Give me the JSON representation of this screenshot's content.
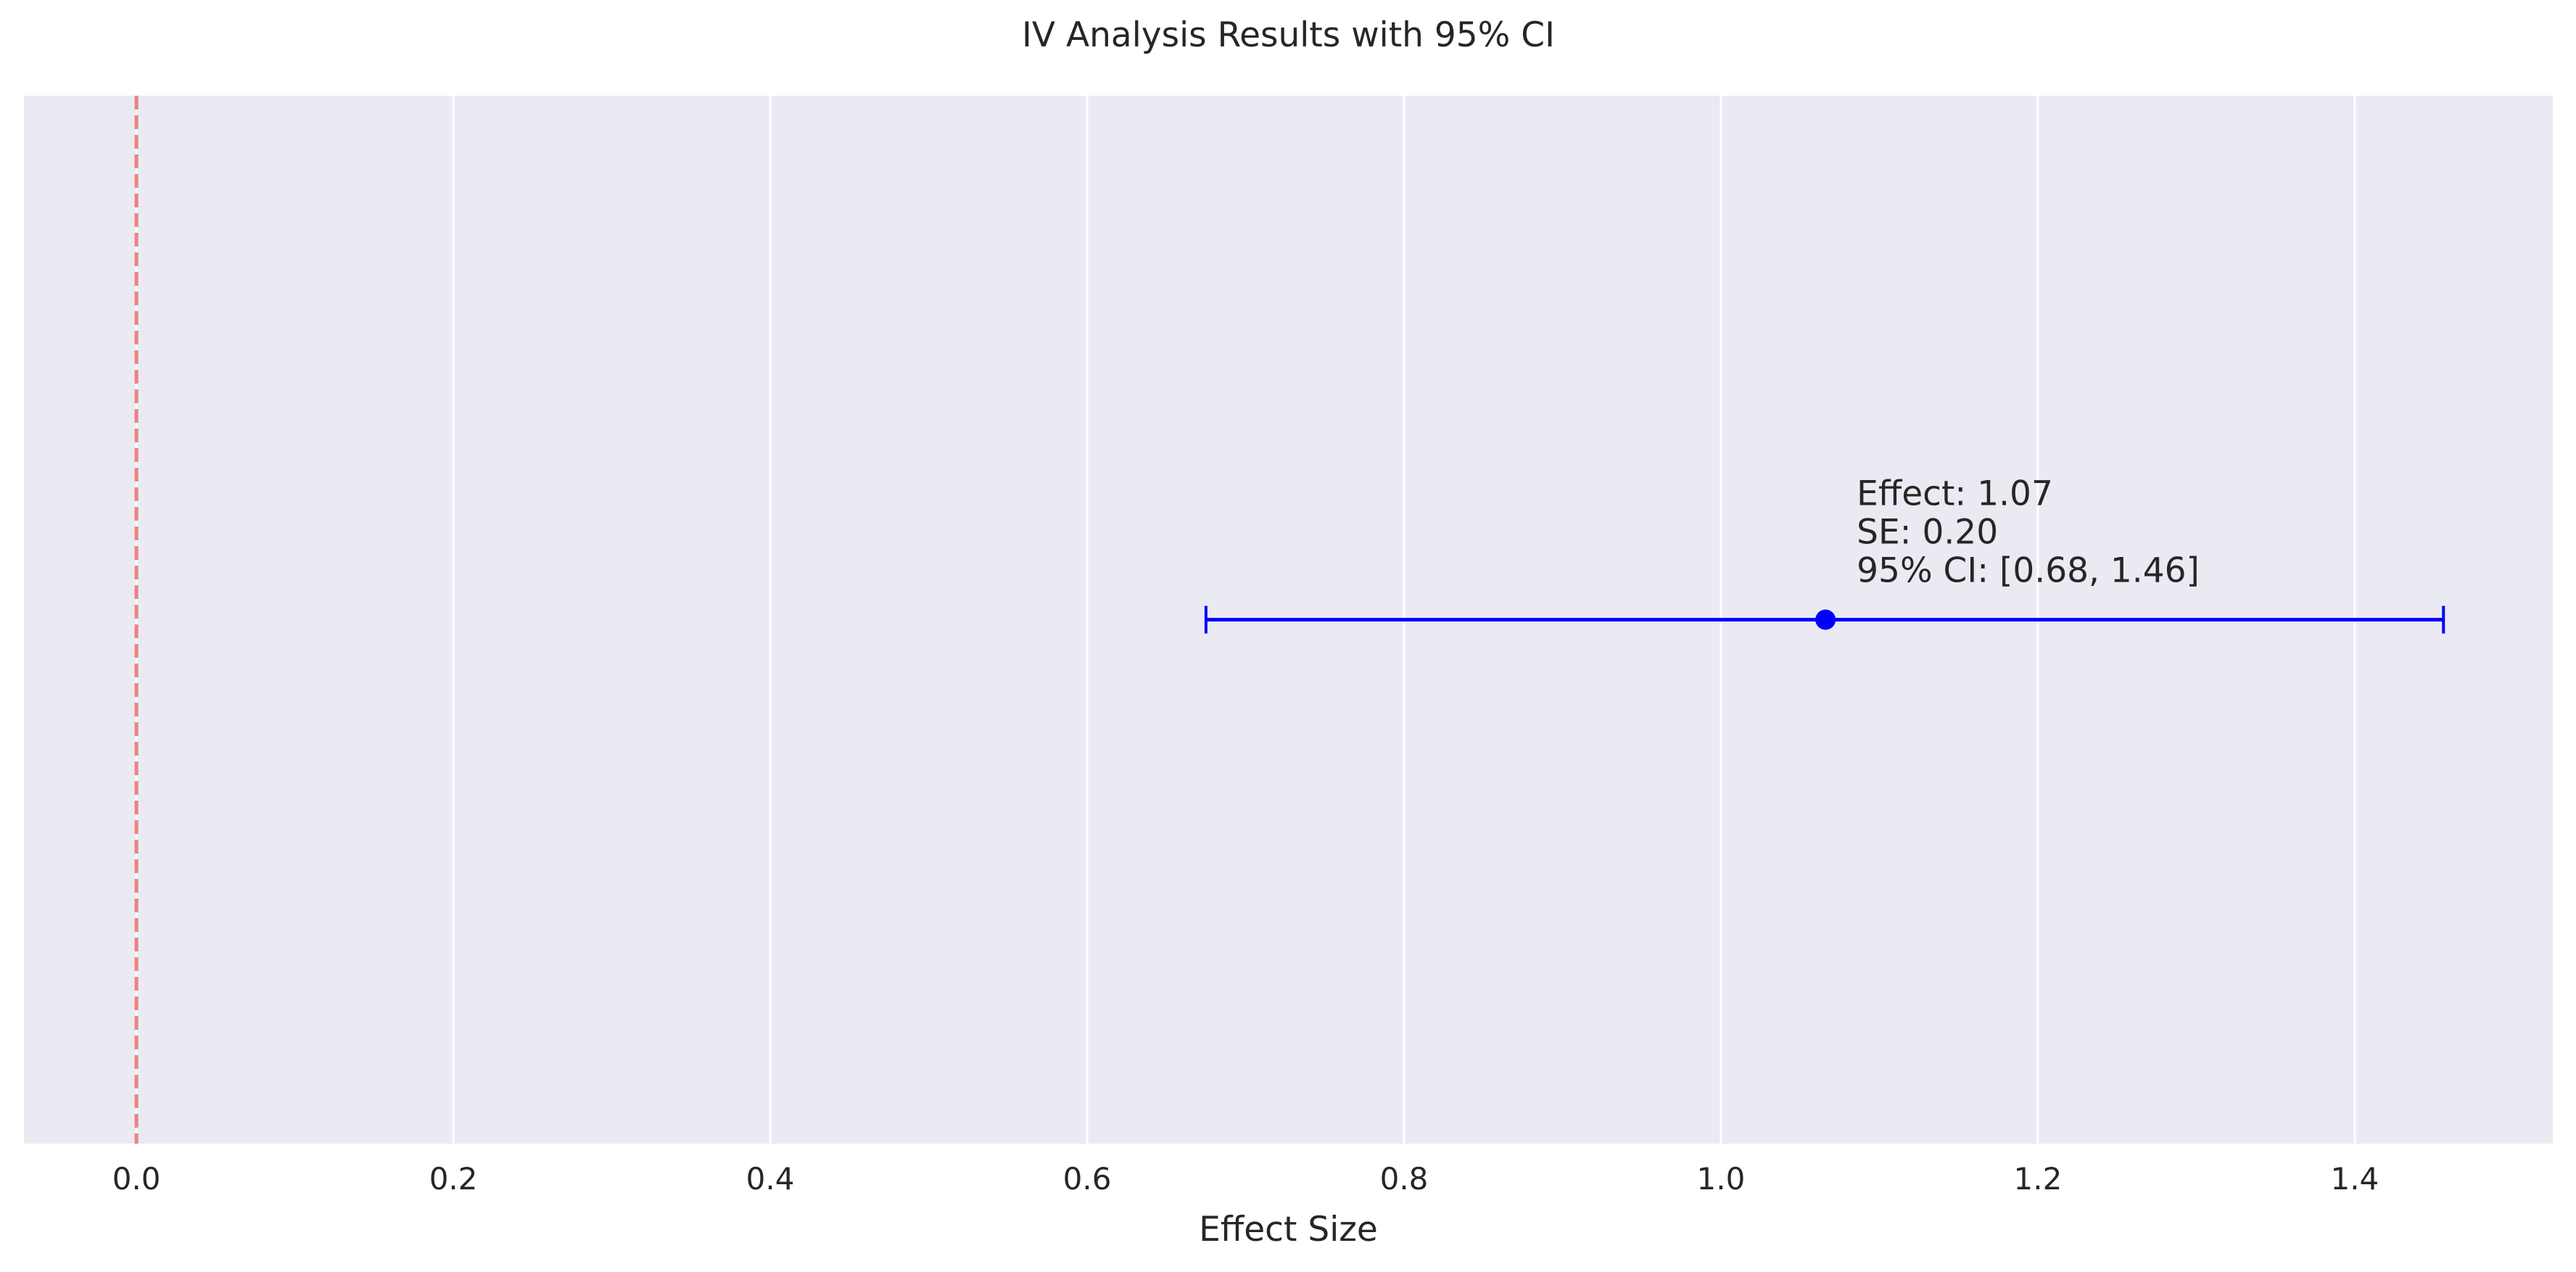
{
  "chart_data": {
    "type": "scatter",
    "title": "IV Analysis Results with 95% CI",
    "xlabel": "Effect Size",
    "ylabel": "",
    "xlim": [
      -0.071,
      1.525
    ],
    "xticks": [
      0.0,
      0.2,
      0.4,
      0.6,
      0.8,
      1.0,
      1.2,
      1.4
    ],
    "xtick_labels": [
      "0.0",
      "0.2",
      "0.4",
      "0.6",
      "0.8",
      "1.0",
      "1.2",
      "1.4"
    ],
    "yticks_visible": false,
    "grid": "vertical",
    "background_color": "#eaeaf2",
    "grid_color": "#ffffff",
    "estimate": {
      "effect": 1.066,
      "se": 0.2,
      "ci_low": 0.675,
      "ci_high": 1.456,
      "color": "#0000ff"
    },
    "reference_line": {
      "x": 0.0,
      "style": "dashed",
      "color": "#f08080"
    },
    "annotation": [
      "Effect: 1.07",
      "SE: 0.20",
      "95% CI: [0.68, 1.46]"
    ]
  }
}
